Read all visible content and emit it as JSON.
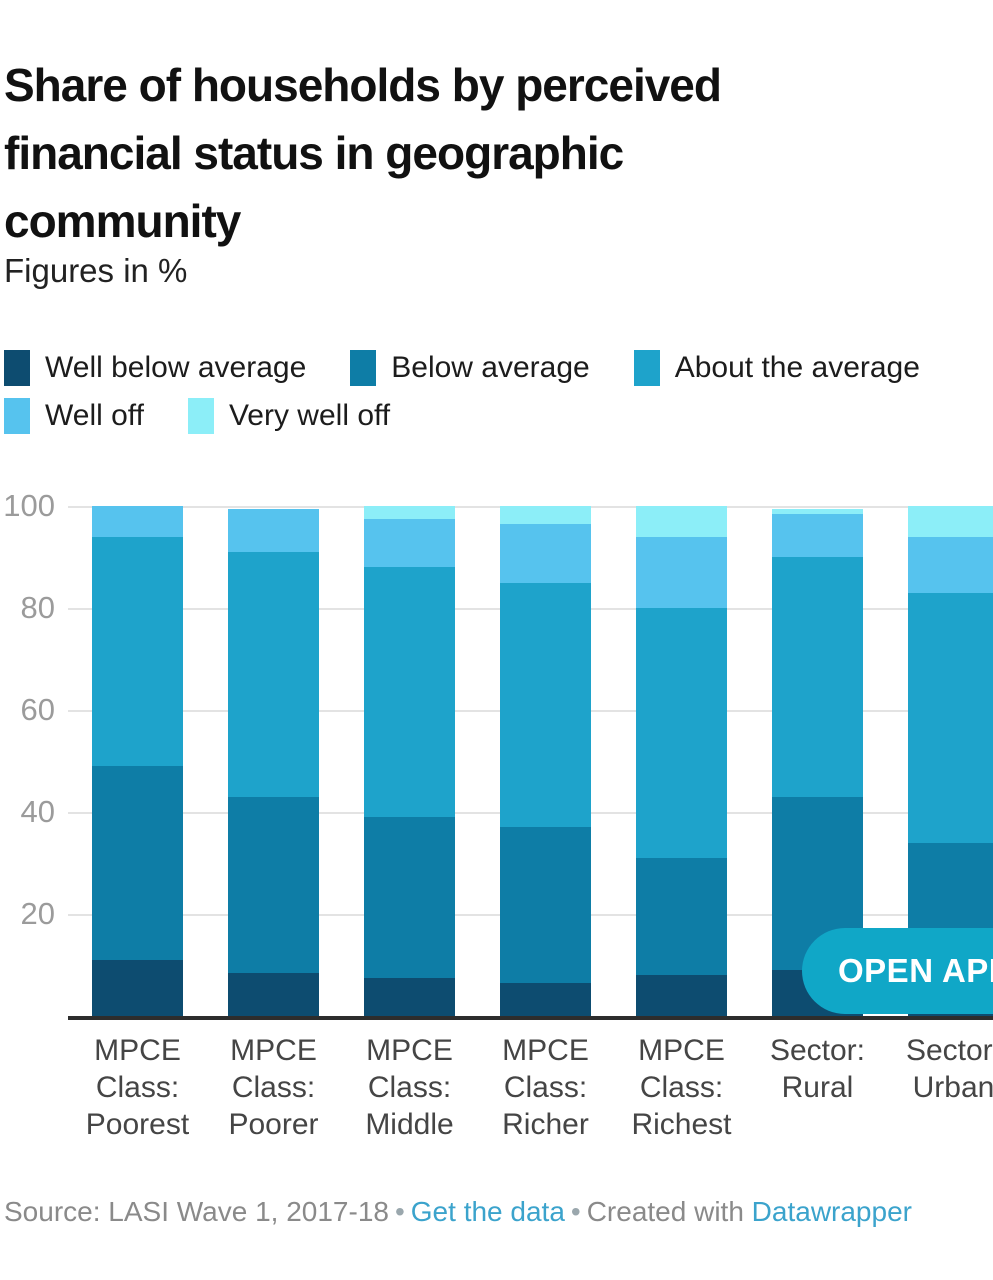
{
  "header": {
    "title_lines": [
      "Share of households by perceived",
      "financial status in geographic",
      "community"
    ],
    "subtitle": "Figures in %"
  },
  "legend": [
    {
      "label": "Well below average",
      "color": "#0d4c70"
    },
    {
      "label": "Below average",
      "color": "#0e7da6"
    },
    {
      "label": "About the average",
      "color": "#1ea3cb"
    },
    {
      "label": "Well off",
      "color": "#56c3ee"
    },
    {
      "label": "Very well off",
      "color": "#8ceef8"
    }
  ],
  "chart_data": {
    "type": "bar",
    "stacked": true,
    "unit": "%",
    "title": "Share of households by perceived financial status in geographic community",
    "subtitle": "Figures in %",
    "categories": [
      "MPCE Class: Poorest",
      "MPCE Class: Poorer",
      "MPCE Class: Middle",
      "MPCE Class: Richer",
      "MPCE Class: Richest",
      "Sector: Rural",
      "Sector: Urban"
    ],
    "category_label_lines": [
      [
        "MPCE",
        "Class:",
        "Poorest"
      ],
      [
        "MPCE",
        "Class:",
        "Poorer"
      ],
      [
        "MPCE",
        "Class:",
        "Middle"
      ],
      [
        "MPCE",
        "Class:",
        "Richer"
      ],
      [
        "MPCE",
        "Class:",
        "Richest"
      ],
      [
        "Sector:",
        "Rural"
      ],
      [
        "Sector:",
        "Urban"
      ]
    ],
    "series": [
      {
        "name": "Well below average",
        "color": "#0d4c70",
        "values": [
          11,
          8.5,
          7.5,
          6.5,
          8,
          9,
          7
        ]
      },
      {
        "name": "Below average",
        "color": "#0e7da6",
        "values": [
          38,
          34.5,
          31.5,
          30.5,
          23,
          34,
          27
        ]
      },
      {
        "name": "About the average",
        "color": "#1ea3cb",
        "values": [
          45,
          48,
          49,
          48,
          49,
          47,
          49
        ]
      },
      {
        "name": "Well off",
        "color": "#56c3ee",
        "values": [
          6,
          8.5,
          9.5,
          11.5,
          14,
          8.5,
          11
        ]
      },
      {
        "name": "Very well off",
        "color": "#8ceef8",
        "values": [
          0,
          0,
          2.5,
          3.5,
          6,
          1,
          6
        ]
      }
    ],
    "y_ticks": [
      20,
      40,
      60,
      80,
      100
    ],
    "ylim": [
      0,
      100
    ],
    "grid": true,
    "legend_position": "top"
  },
  "overlay_button": {
    "label": "OPEN APP",
    "color": "#10a7c7"
  },
  "footer": {
    "source_text": "Source: LASI Wave 1, 2017-18",
    "separator": "•",
    "get_data_link": "Get the data",
    "created_with_text": "Created with",
    "datawrapper_link": "Datawrapper"
  }
}
